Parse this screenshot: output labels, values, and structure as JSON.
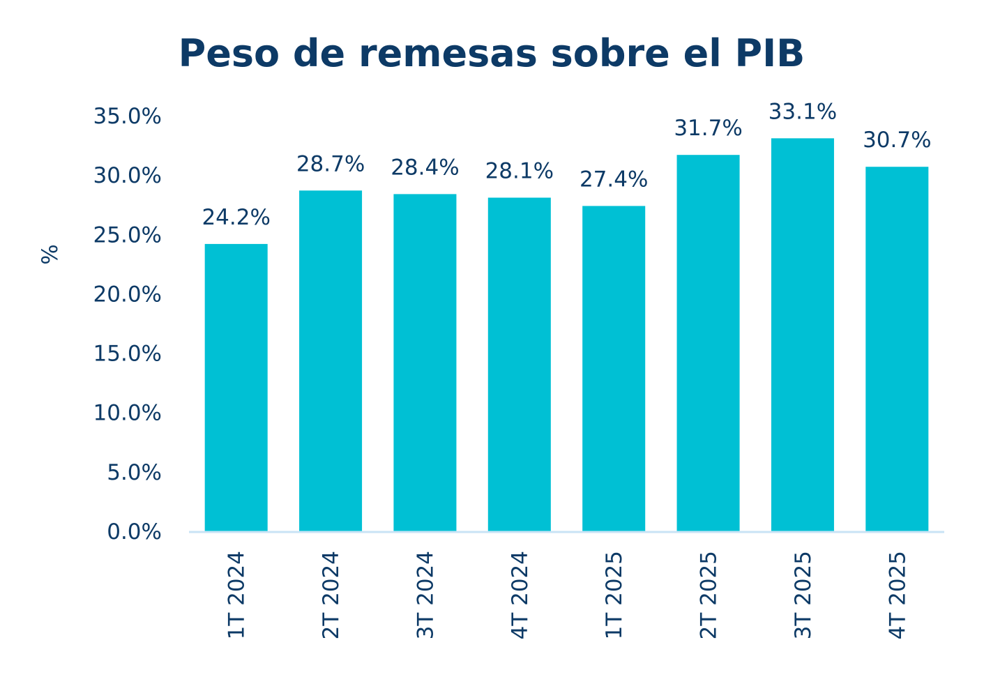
{
  "chart_data": {
    "type": "bar",
    "title": "Peso de remesas sobre el PIB",
    "xlabel": "",
    "ylabel": "%",
    "categories": [
      "1T 2024",
      "2T 2024",
      "3T 2024",
      "4T 2024",
      "1T 2025",
      "2T 2025",
      "3T 2025",
      "4T 2025"
    ],
    "values": [
      24.2,
      28.7,
      28.4,
      28.1,
      27.4,
      31.7,
      33.1,
      30.7
    ],
    "value_labels": [
      "24.2%",
      "28.7%",
      "28.4%",
      "28.1%",
      "27.4%",
      "31.7%",
      "33.1%",
      "30.7%"
    ],
    "y_ticks": [
      "0.0%",
      "5.0%",
      "10.0%",
      "15.0%",
      "20.0%",
      "25.0%",
      "30.0%",
      "35.0%"
    ],
    "ylim": [
      0,
      35
    ],
    "grid": false,
    "legend": "none",
    "colors": {
      "bar": "#00c0d4",
      "text": "#0d3a66",
      "axis": "#c9e3f5"
    }
  }
}
